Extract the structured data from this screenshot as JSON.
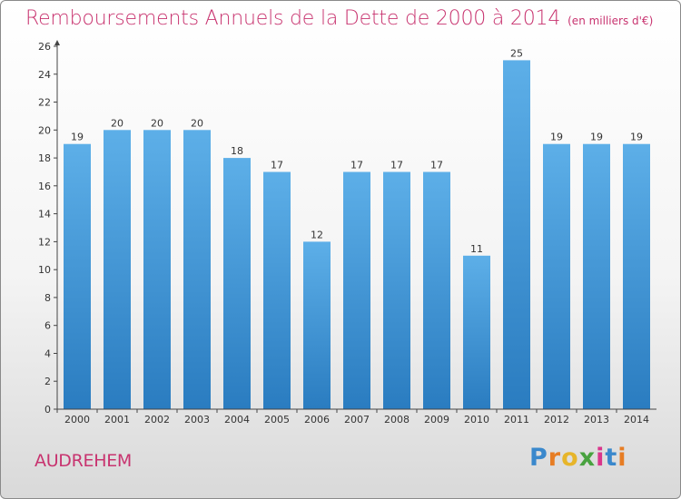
{
  "header": {
    "title": "Remboursements Annuels de la Dette de 2000 à 2014",
    "subtitle": "(en milliers d'€)"
  },
  "footer": {
    "city": "AUDREHEM",
    "logo_letters": [
      "P",
      "r",
      "o",
      "x",
      "i",
      "t",
      "i"
    ],
    "logo_colors": [
      "#3a88cc",
      "#e77d24",
      "#e7b52a",
      "#48a23f",
      "#d9358b",
      "#3a88cc",
      "#e77d24"
    ]
  },
  "colors": {
    "bar_top": "#5dafe8",
    "bar_bottom": "#2a7cc0",
    "axis": "#444444",
    "grid": "#cccccc"
  },
  "chart_data": {
    "type": "bar",
    "title": "Remboursements Annuels de la Dette de 2000 à 2014",
    "subtitle": "(en milliers d'€)",
    "xlabel": "",
    "ylabel": "",
    "categories": [
      "2000",
      "2001",
      "2002",
      "2003",
      "2004",
      "2005",
      "2006",
      "2007",
      "2008",
      "2009",
      "2010",
      "2011",
      "2012",
      "2013",
      "2014"
    ],
    "values": [
      19,
      20,
      20,
      20,
      18,
      17,
      12,
      17,
      17,
      17,
      11,
      25,
      19,
      19,
      19
    ],
    "value_labels": [
      "19",
      "20",
      "20",
      "20",
      "18",
      "17",
      "12",
      "17",
      "17",
      "17",
      "11",
      "25",
      "19",
      "19",
      "19"
    ],
    "ylim": [
      0,
      26
    ],
    "yticks": [
      "0",
      "2",
      "4",
      "6",
      "8",
      "10",
      "12",
      "14",
      "16",
      "18",
      "20",
      "22",
      "24",
      "26"
    ],
    "grid": false,
    "legend": "none"
  }
}
